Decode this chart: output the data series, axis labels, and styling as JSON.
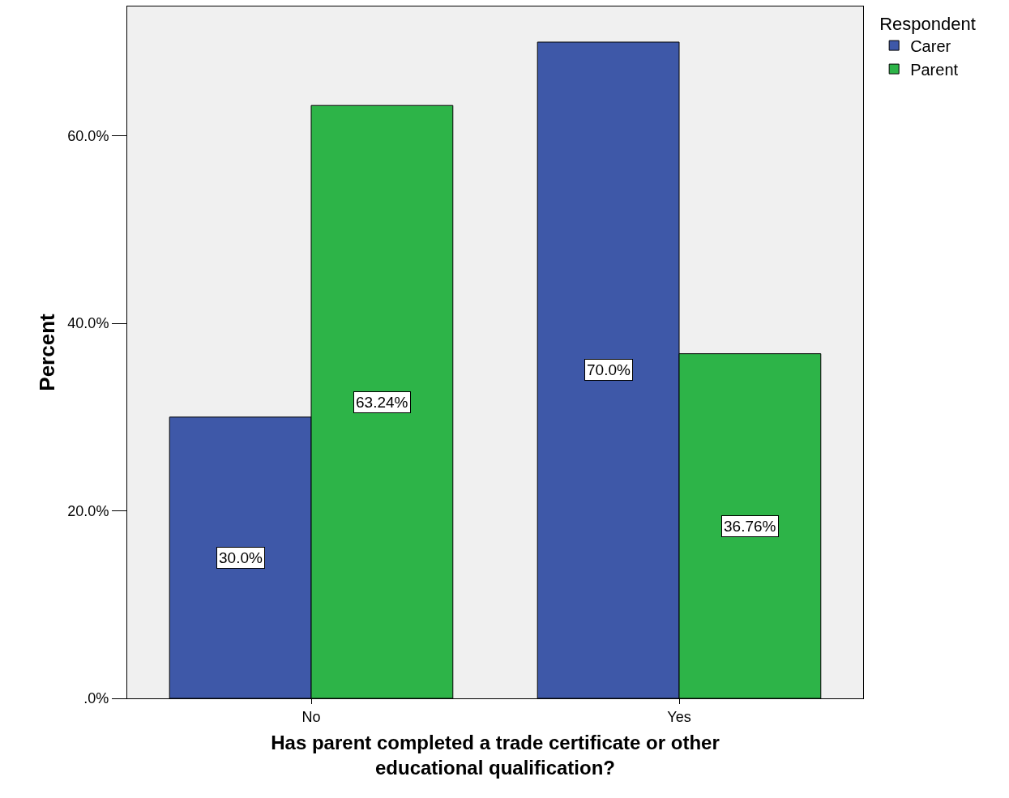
{
  "chart_data": {
    "type": "bar",
    "xlabel": "Has parent completed a trade certificate or other educational qualification?",
    "ylabel": "Percent",
    "legend_title": "Respondent",
    "categories": [
      "No",
      "Yes"
    ],
    "series": [
      {
        "name": "Carer",
        "color": "#3e58a8",
        "values": [
          30.0,
          70.0
        ],
        "value_labels": [
          "30.0%",
          "70.0%"
        ]
      },
      {
        "name": "Parent",
        "color": "#2db448",
        "values": [
          63.24,
          36.76
        ],
        "value_labels": [
          "63.24%",
          "36.76%"
        ]
      }
    ],
    "ylim": [
      0,
      73.8
    ],
    "yticks": [
      {
        "value": 0,
        "label": ".0%"
      },
      {
        "value": 20,
        "label": "20.0%"
      },
      {
        "value": 40,
        "label": "40.0%"
      },
      {
        "value": 60,
        "label": "60.0%"
      }
    ],
    "grid": false,
    "legend": "top right"
  }
}
